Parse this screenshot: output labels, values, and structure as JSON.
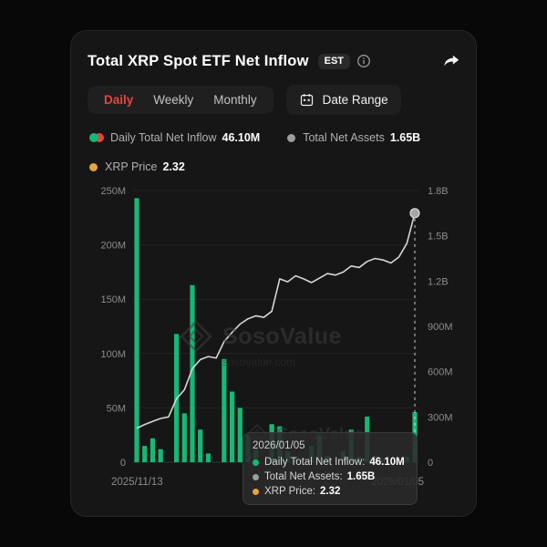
{
  "colors": {
    "green": "#17b877",
    "red": "#e8453c",
    "orange": "#e8a33d",
    "line": "#d6d6d6",
    "tab_active": "#e8453c"
  },
  "header": {
    "title": "Total XRP Spot ETF Net Inflow",
    "badge": "EST"
  },
  "tabs": {
    "items": [
      "Daily",
      "Weekly",
      "Monthly"
    ],
    "active": "Daily",
    "date_range_label": "Date Range"
  },
  "legend": {
    "daily_label": "Daily Total Net Inflow",
    "daily_value": "46.10M",
    "assets_label": "Total Net Assets",
    "assets_value": "1.65B",
    "price_label": "XRP Price",
    "price_value": "2.32"
  },
  "watermark": {
    "brand": "SosoValue",
    "domain": "sosovalue.com"
  },
  "tooltip": {
    "date": "2026/01/05",
    "rows": [
      {
        "label": "Daily Total Net Inflow:",
        "value": "46.10M",
        "color": "#17b877"
      },
      {
        "label": "Total Net Assets:",
        "value": "1.65B",
        "color": "#9e9e9e"
      },
      {
        "label": "XRP Price:",
        "value": "2.32",
        "color": "#e8a33d"
      }
    ]
  },
  "chart_data": {
    "type": "bar",
    "title": "Total XRP Spot ETF Net Inflow",
    "x_start_label": "2025/11/13",
    "x_end_label": "2026/01/05",
    "grid": true,
    "left_axis": {
      "unit": "USD (M)",
      "max": 250,
      "ticks": [
        "0",
        "50M",
        "100M",
        "150M",
        "200M",
        "250M"
      ]
    },
    "right_axis": {
      "unit": "USD (M)",
      "max": 1800,
      "ticks": [
        "0",
        "300M",
        "600M",
        "900M",
        "1.2B",
        "1.5B",
        "1.8B"
      ]
    },
    "series": [
      {
        "name": "Daily Total Net Inflow",
        "type": "bar",
        "unit": "M USD",
        "values": [
          243,
          15,
          22,
          12,
          0,
          118,
          45,
          163,
          30,
          8,
          0,
          95,
          65,
          50,
          25,
          12,
          0,
          35,
          33,
          10,
          5,
          0,
          15,
          25,
          6,
          0,
          10,
          30,
          5,
          42,
          6,
          3,
          0,
          0,
          5,
          46.1
        ]
      },
      {
        "name": "Total Net Assets",
        "type": "line",
        "unit": "M USD",
        "values": [
          225,
          250,
          270,
          290,
          300,
          420,
          480,
          620,
          680,
          700,
          690,
          800,
          860,
          915,
          950,
          970,
          960,
          1000,
          1215,
          1195,
          1235,
          1215,
          1190,
          1220,
          1250,
          1240,
          1260,
          1300,
          1290,
          1330,
          1350,
          1340,
          1320,
          1360,
          1450,
          1650
        ]
      }
    ],
    "highlight_index": 35
  }
}
